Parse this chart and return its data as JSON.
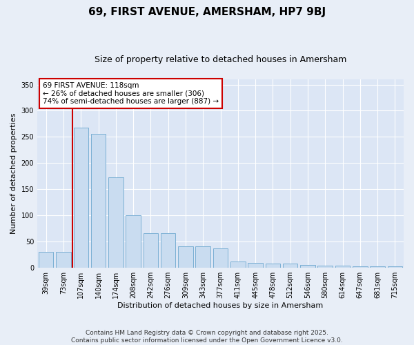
{
  "title1": "69, FIRST AVENUE, AMERSHAM, HP7 9BJ",
  "title2": "Size of property relative to detached houses in Amersham",
  "xlabel": "Distribution of detached houses by size in Amersham",
  "ylabel": "Number of detached properties",
  "categories": [
    "39sqm",
    "73sqm",
    "107sqm",
    "140sqm",
    "174sqm",
    "208sqm",
    "242sqm",
    "276sqm",
    "309sqm",
    "343sqm",
    "377sqm",
    "411sqm",
    "445sqm",
    "478sqm",
    "512sqm",
    "546sqm",
    "580sqm",
    "614sqm",
    "647sqm",
    "681sqm",
    "715sqm"
  ],
  "values": [
    30,
    30,
    268,
    256,
    172,
    100,
    65,
    65,
    41,
    41,
    37,
    12,
    9,
    8,
    7,
    5,
    4,
    4,
    2,
    2,
    2
  ],
  "bar_color": "#c9dcf0",
  "bar_edge_color": "#7aafd4",
  "vline_color": "#cc0000",
  "vline_index": 2,
  "annotation_text": "69 FIRST AVENUE: 118sqm\n← 26% of detached houses are smaller (306)\n74% of semi-detached houses are larger (887) →",
  "annotation_box_color": "#ffffff",
  "annotation_box_edge": "#cc0000",
  "background_color": "#e8eef7",
  "plot_bg_color": "#dce6f5",
  "grid_color": "#ffffff",
  "footnote": "Contains HM Land Registry data © Crown copyright and database right 2025.\nContains public sector information licensed under the Open Government Licence v3.0.",
  "title1_fontsize": 11,
  "title2_fontsize": 9,
  "axis_label_fontsize": 8,
  "tick_fontsize": 7,
  "annotation_fontsize": 7.5,
  "footnote_fontsize": 6.5,
  "ylim": [
    0,
    360
  ]
}
